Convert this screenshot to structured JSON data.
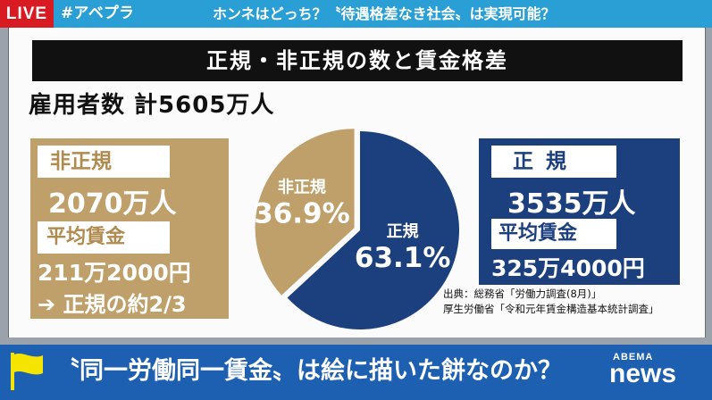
{
  "topbar": {
    "live": "LIVE",
    "hashtag": "#アベプラ",
    "topic": "ホンネはどっち？〝待遇格差なき社会〟は実現可能？"
  },
  "panel": {
    "title": "正規・非正規の数と賃金格差",
    "employee_total": "雇用者数  計5605万人",
    "nonregular": {
      "title": "非正規",
      "count": "2070万人",
      "wage_label": "平均賃金",
      "wage": "211万2000円",
      "note": "➔ 正規の約2/3"
    },
    "regular": {
      "title": "正規",
      "count": "3535万人",
      "wage_label": "平均賃金",
      "wage": "325万4000円"
    },
    "source": {
      "line1": "出典：総務省「労働力調査(8月)」",
      "line2": "厚生労働省「令和元年賃金構造基本統計調査」"
    }
  },
  "chart_data": {
    "type": "pie",
    "slices": [
      {
        "label": "正規",
        "value": 63.1,
        "display": "63.1%",
        "color": "#1c3f7d"
      },
      {
        "label": "非正規",
        "value": 36.9,
        "display": "36.9%",
        "color": "#c0a06a"
      }
    ]
  },
  "caption": {
    "text": "〝同一労働同一賃金〟は絵に描いた餅なのか？",
    "logo_sub": "ABEMA",
    "logo_main": "news"
  },
  "colors": {
    "live_red": "#d81b22",
    "topbar_blue": "#2a9fd6",
    "caption_blue": "#1d5fb0",
    "regular_navy": "#1c3f7d",
    "nonregular_gold": "#c0a06a",
    "flag_yellow": "#f5e300"
  }
}
